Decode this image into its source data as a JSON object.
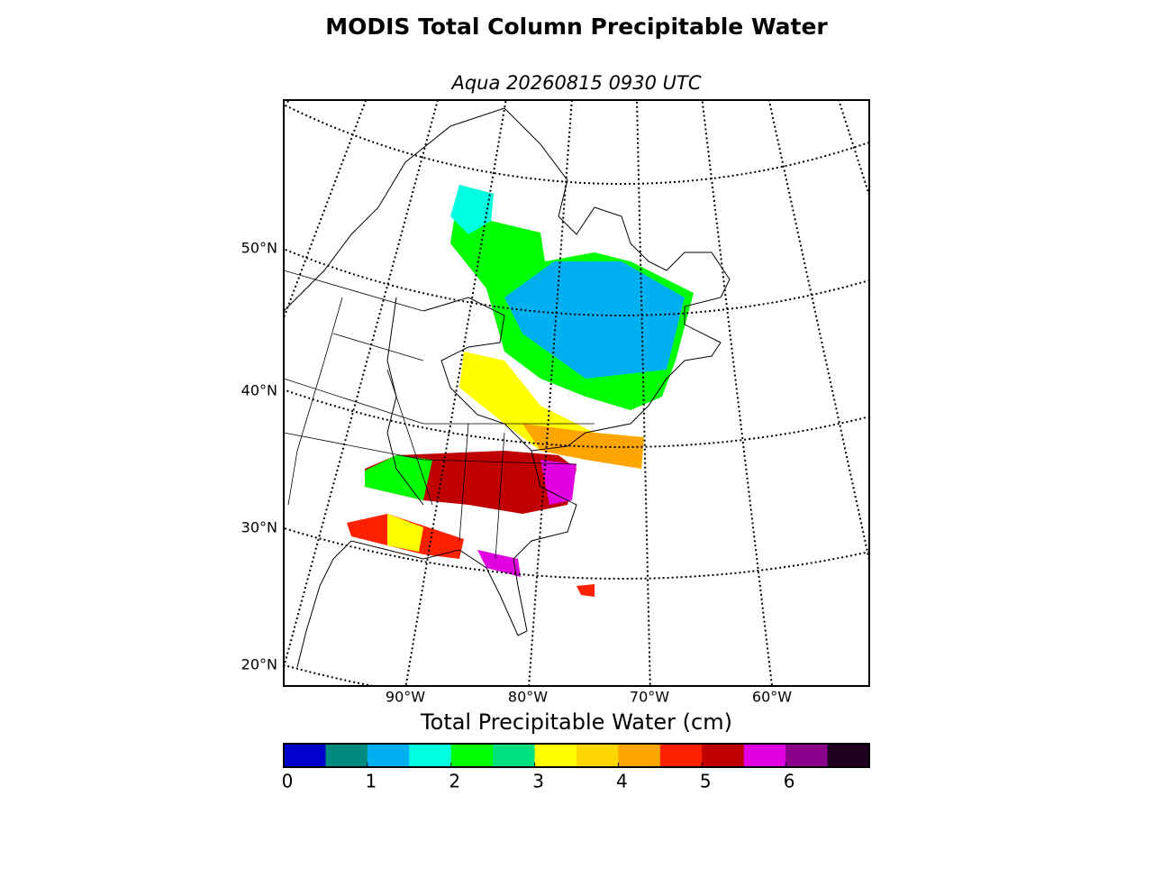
{
  "title": "MODIS Total Column Precipitable Water",
  "subtitle": "Aqua 20260815 0930 UTC",
  "lat_labels": [
    "50°N",
    "40°N",
    "30°N",
    "20°N"
  ],
  "lon_labels": [
    "90°W",
    "80°W",
    "70°W",
    "60°W"
  ],
  "colorbar": {
    "label": "Total Precipitable Water (cm)",
    "range": [
      0,
      7
    ],
    "ticks": [
      0,
      1,
      2,
      3,
      4,
      5,
      6
    ],
    "colors": [
      "#0000cd",
      "#008b80",
      "#00b0f0",
      "#00ffe0",
      "#00ff00",
      "#00e080",
      "#ffff00",
      "#ffd700",
      "#ffa500",
      "#ff2000",
      "#c00000",
      "#e000e0",
      "#8b008b",
      "#200020"
    ]
  }
}
